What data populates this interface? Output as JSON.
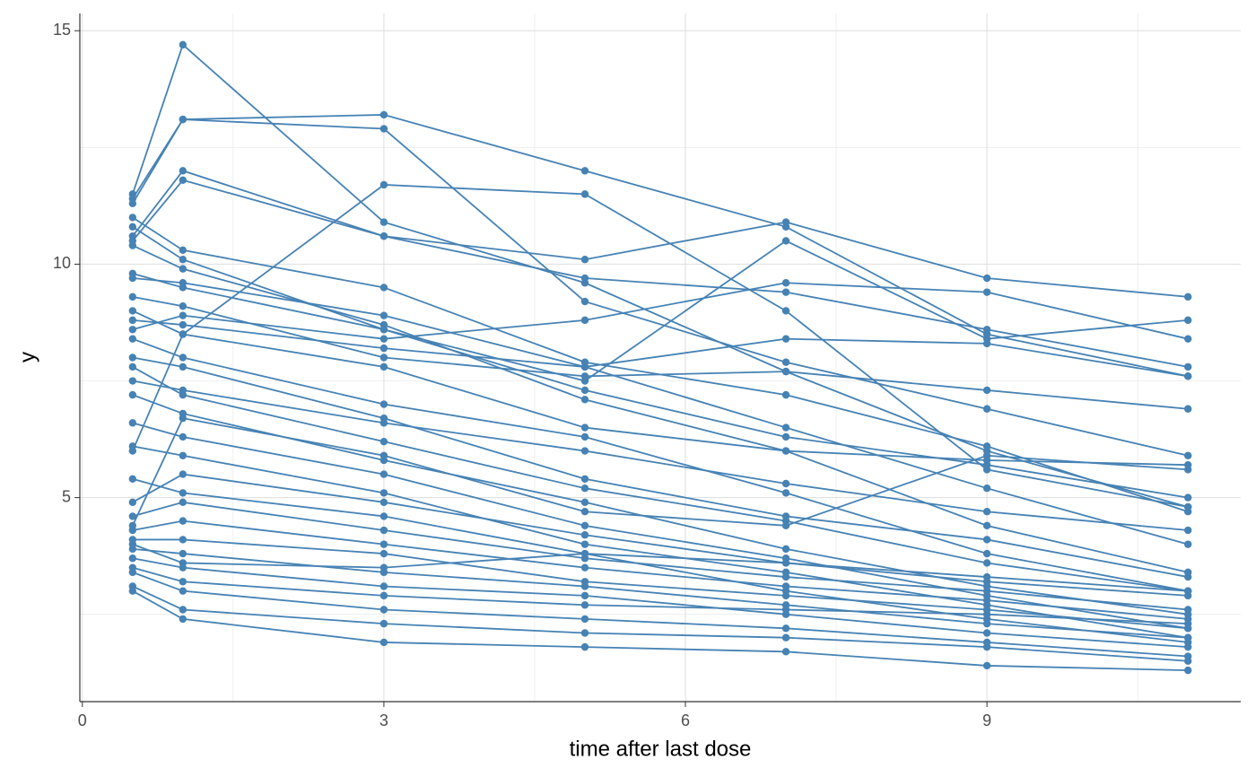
{
  "chart_data": {
    "type": "line",
    "x_label": "time after last dose",
    "y_label": "y",
    "x": [
      0.5,
      1,
      3,
      5,
      7,
      9,
      11
    ],
    "color": "#4682b4",
    "xlim": [
      -0.025,
      11.525
    ],
    "xticks": [
      0,
      3,
      6,
      9
    ],
    "ylim": [
      0.63,
      15.37
    ],
    "yticks": [
      5,
      10,
      15
    ],
    "x_minor_grid": [
      1.5,
      4.5,
      7.5,
      10.5
    ],
    "y_minor_grid": [
      2.5,
      7.5,
      12.5
    ],
    "grid": true,
    "series": [
      {
        "values": [
          11.5,
          14.7,
          10.9,
          9.6,
          7.7,
          6.0,
          4.8
        ]
      },
      {
        "values": [
          11.4,
          13.1,
          13.2,
          12.0,
          10.8,
          8.5,
          7.6
        ]
      },
      {
        "values": [
          11.3,
          13.1,
          12.9,
          9.2,
          7.9,
          6.9,
          5.9
        ]
      },
      {
        "values": [
          10.6,
          12.0,
          10.6,
          10.1,
          10.9,
          9.7,
          9.3
        ]
      },
      {
        "values": [
          10.5,
          11.8,
          10.6,
          9.7,
          9.4,
          8.6,
          7.8
        ]
      },
      {
        "values": [
          6.0,
          8.5,
          11.7,
          11.5,
          9.0,
          5.6,
          4.8
        ]
      },
      {
        "values": [
          9.8,
          9.5,
          8.6,
          7.5,
          10.5,
          8.4,
          8.8
        ]
      },
      {
        "values": [
          8.6,
          8.9,
          8.4,
          8.8,
          9.6,
          9.4,
          8.4
        ]
      },
      {
        "values": [
          11.0,
          10.3,
          9.5,
          7.9,
          7.2,
          6.1,
          4.7
        ]
      },
      {
        "values": [
          10.8,
          10.1,
          8.6,
          7.3,
          6.3,
          5.7,
          5.0
        ]
      },
      {
        "values": [
          9.0,
          8.5,
          7.8,
          6.5,
          6.0,
          5.8,
          5.7
        ]
      },
      {
        "values": [
          8.0,
          7.8,
          6.7,
          5.4,
          4.6,
          4.1,
          3.3
        ]
      },
      {
        "values": [
          7.8,
          7.2,
          6.2,
          5.2,
          4.5,
          3.6,
          3.0
        ]
      },
      {
        "values": [
          7.2,
          6.8,
          5.8,
          4.9,
          3.9,
          3.1,
          2.5
        ]
      },
      {
        "values": [
          6.6,
          6.3,
          5.5,
          4.4,
          3.7,
          2.9,
          2.2
        ]
      },
      {
        "values": [
          6.1,
          5.9,
          5.1,
          4.0,
          3.4,
          2.7,
          2.0
        ]
      },
      {
        "values": [
          5.4,
          5.1,
          4.6,
          3.8,
          3.0,
          2.4,
          1.9
        ]
      },
      {
        "values": [
          4.9,
          5.5,
          4.9,
          4.2,
          3.6,
          3.2,
          2.9
        ]
      },
      {
        "values": [
          4.6,
          4.9,
          4.3,
          3.7,
          3.3,
          3.0,
          2.6
        ]
      },
      {
        "values": [
          4.3,
          4.5,
          4.0,
          3.5,
          3.1,
          2.8,
          2.4
        ]
      },
      {
        "values": [
          4.1,
          4.1,
          3.8,
          3.2,
          2.9,
          2.6,
          2.2
        ]
      },
      {
        "values": [
          3.9,
          3.8,
          3.4,
          3.1,
          2.7,
          2.3,
          2.0
        ]
      },
      {
        "values": [
          3.7,
          3.5,
          3.1,
          2.9,
          2.5,
          2.1,
          1.8
        ]
      },
      {
        "values": [
          3.4,
          3.0,
          2.6,
          2.4,
          2.2,
          1.9,
          1.6
        ]
      },
      {
        "values": [
          3.1,
          2.6,
          2.3,
          2.1,
          2.0,
          1.8,
          1.5
        ]
      },
      {
        "values": [
          3.0,
          2.4,
          1.9,
          1.8,
          1.7,
          1.4,
          1.3
        ]
      },
      {
        "values": [
          4.0,
          3.6,
          3.5,
          3.8,
          3.6,
          3.3,
          3.0
        ]
      },
      {
        "values": [
          3.5,
          3.2,
          2.9,
          2.7,
          2.6,
          2.5,
          2.3
        ]
      },
      {
        "values": [
          9.3,
          9.1,
          8.0,
          7.6,
          7.7,
          7.3,
          6.9
        ]
      },
      {
        "values": [
          8.8,
          8.7,
          8.2,
          7.8,
          8.4,
          8.3,
          7.6
        ]
      },
      {
        "values": [
          10.4,
          9.9,
          8.7,
          7.1,
          6.0,
          4.4,
          3.4
        ]
      },
      {
        "values": [
          4.4,
          6.7,
          5.9,
          4.7,
          4.4,
          5.9,
          5.6
        ]
      },
      {
        "values": [
          8.4,
          8.0,
          7.0,
          6.3,
          5.1,
          3.8,
          3.0
        ]
      },
      {
        "values": [
          7.5,
          7.3,
          6.6,
          6.0,
          5.3,
          4.7,
          4.3
        ]
      },
      {
        "values": [
          9.7,
          9.6,
          8.9,
          7.8,
          6.5,
          5.2,
          4.0
        ]
      }
    ]
  }
}
